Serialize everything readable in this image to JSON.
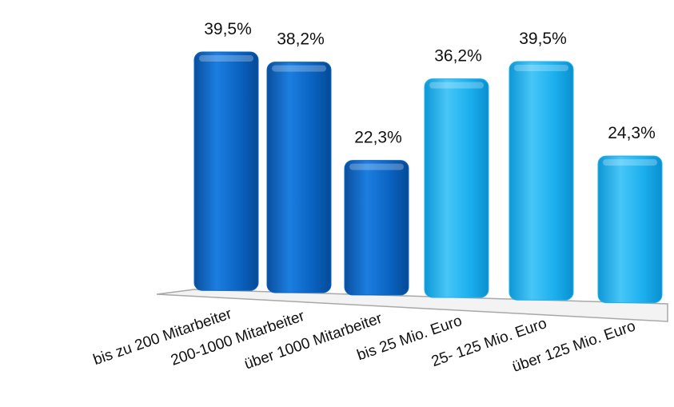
{
  "chart_data": {
    "type": "bar",
    "categories": [
      "bis zu 200 Mitarbeiter",
      "200-1000 Mitarbeiter",
      "über 1000 Mitarbeiter",
      "bis 25 Mio. Euro",
      "25- 125 Mio. Euro",
      "über 125 Mio. Euro"
    ],
    "values": [
      39.5,
      38.2,
      22.3,
      36.2,
      39.5,
      24.3
    ],
    "data_labels": [
      "39,5%",
      "38,2%",
      "22,3%",
      "36,2%",
      "39,5%",
      "24,3%"
    ],
    "colors": [
      "#0a64c4",
      "#0a64c4",
      "#0a64c4",
      "#1eb0ee",
      "#1eb0ee",
      "#1eb0ee"
    ],
    "grid": false,
    "legend": "none",
    "ylim": [
      0,
      40
    ]
  }
}
